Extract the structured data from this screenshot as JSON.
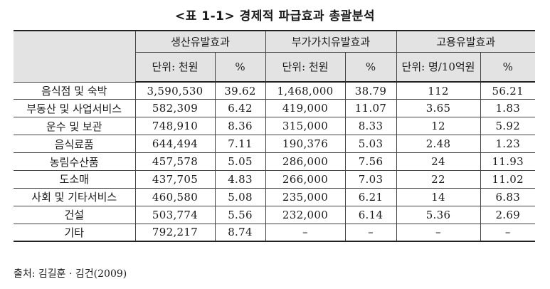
{
  "title": "<표 1-1> 경제적 파급효과 총괄분석",
  "table": {
    "groups": [
      "생산유발효과",
      "부가가치유발효과",
      "고용유발효과"
    ],
    "subheaders": [
      "단위: 천원",
      "%",
      "단위: 천원",
      "%",
      "단위: 명/10억원",
      "%"
    ],
    "rows": [
      {
        "label": "음식점 및 숙박",
        "cells": [
          "3,590,530",
          "39.62",
          "1,468,000",
          "38.79",
          "112",
          "56.21"
        ]
      },
      {
        "label": "부동산 및 사업서비스",
        "cells": [
          "582,309",
          "6.42",
          "419,000",
          "11.07",
          "3.65",
          "1.83"
        ]
      },
      {
        "label": "운수 및 보관",
        "cells": [
          "748,910",
          "8.36",
          "315,000",
          "8.33",
          "12",
          "5.92"
        ]
      },
      {
        "label": "음식료품",
        "cells": [
          "644,494",
          "7.11",
          "190,376",
          "5.03",
          "2.48",
          "1.23"
        ]
      },
      {
        "label": "농림수산품",
        "cells": [
          "457,578",
          "5.05",
          "286,000",
          "7.56",
          "24",
          "11.93"
        ]
      },
      {
        "label": "도소매",
        "cells": [
          "437,705",
          "4.83",
          "266,000",
          "7.03",
          "22",
          "11.02"
        ]
      },
      {
        "label": "사회 및 기타서비스",
        "cells": [
          "460,580",
          "5.08",
          "235,000",
          "6.21",
          "14",
          "6.83"
        ]
      },
      {
        "label": "건설",
        "cells": [
          "503,774",
          "5.56",
          "232,000",
          "6.14",
          "5.36",
          "2.69"
        ]
      },
      {
        "label": "기타",
        "cells": [
          "792,217",
          "8.74",
          "–",
          "–",
          "–",
          "–"
        ]
      }
    ]
  },
  "source": "출처: 김길훈 · 김건(2009)"
}
